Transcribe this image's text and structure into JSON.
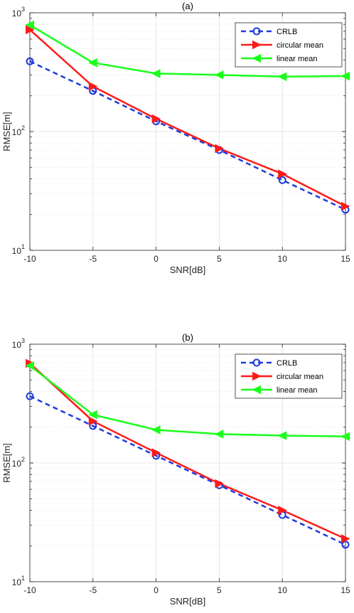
{
  "chart_data": [
    {
      "type": "line",
      "title": "(a)",
      "xlabel": "SNR[dB]",
      "ylabel": "RMSE[m]",
      "x": [
        -10,
        -5,
        0,
        5,
        10,
        15
      ],
      "xlim": [
        -10,
        15
      ],
      "ylim": [
        10,
        1000
      ],
      "yscale": "log",
      "xticks": [
        "-10",
        "-5",
        "0",
        "5",
        "10",
        "15"
      ],
      "yticks": [
        {
          "base": "10",
          "exp": "1"
        },
        {
          "base": "10",
          "exp": "2"
        },
        {
          "base": "10",
          "exp": "3"
        }
      ],
      "grid": true,
      "legend_position": "top-right",
      "series": [
        {
          "name": "CRLB",
          "color": "#1f3bdc",
          "style": "dashed",
          "marker": "circle",
          "values": [
            390,
            220,
            122,
            70,
            39,
            22
          ]
        },
        {
          "name": "circular mean",
          "color": "#ff1a1a",
          "style": "solid",
          "marker": "triangle-right",
          "values": [
            720,
            240,
            128,
            72,
            44,
            23.5
          ]
        },
        {
          "name": "linear mean",
          "color": "#1aff1a",
          "style": "solid",
          "marker": "triangle-left",
          "values": [
            790,
            380,
            308,
            300,
            290,
            293
          ]
        }
      ]
    },
    {
      "type": "line",
      "title": "(b)",
      "xlabel": "SNR[dB]",
      "ylabel": "RMSE[m]",
      "x": [
        -10,
        -5,
        0,
        5,
        10,
        15
      ],
      "xlim": [
        -10,
        15
      ],
      "ylim": [
        10,
        1000
      ],
      "yscale": "log",
      "xticks": [
        "-10",
        "-5",
        "0",
        "5",
        "10",
        "15"
      ],
      "yticks": [
        {
          "base": "10",
          "exp": "1"
        },
        {
          "base": "10",
          "exp": "2"
        },
        {
          "base": "10",
          "exp": "3"
        }
      ],
      "grid": true,
      "legend_position": "top-right",
      "series": [
        {
          "name": "CRLB",
          "color": "#1f3bdc",
          "style": "dashed",
          "marker": "circle",
          "values": [
            365,
            205,
            115,
            65,
            36.5,
            20.5
          ]
        },
        {
          "name": "circular mean",
          "color": "#ff1a1a",
          "style": "solid",
          "marker": "triangle-right",
          "values": [
            690,
            225,
            122,
            67,
            40,
            23
          ]
        },
        {
          "name": "linear mean",
          "color": "#1aff1a",
          "style": "solid",
          "marker": "triangle-left",
          "values": [
            660,
            255,
            190,
            175,
            170,
            167
          ]
        }
      ]
    }
  ]
}
